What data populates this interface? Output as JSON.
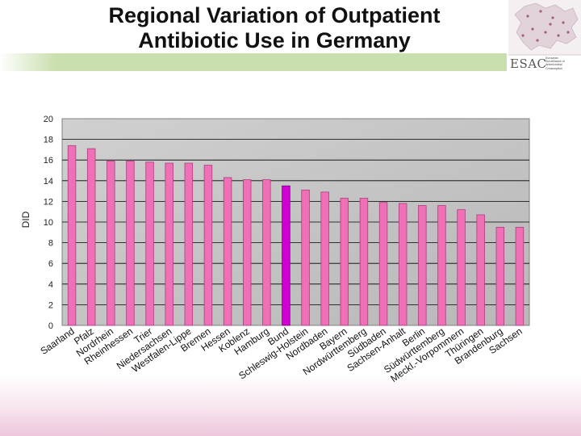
{
  "title_line1": "Regional Variation of Outpatient",
  "title_line2": "Antibiotic Use in Germany",
  "logo": {
    "text": "ESAC",
    "sub_line1": "European",
    "sub_line2": "Surveillance of",
    "sub_line3": "Antimicrobial",
    "sub_line4": "Consumption"
  },
  "colors": {
    "bar": "#f070b8",
    "bar_dark": "#a8407c",
    "highlight": "#d000d0",
    "highlight_dark": "#700070",
    "plot_bg": "#c0c0c0",
    "green": "#c9dfad"
  },
  "chart_data": {
    "type": "bar",
    "title": "",
    "xlabel": "",
    "ylabel": "DID",
    "ylim": [
      0,
      20
    ],
    "yticks": [
      "0",
      "2",
      "4",
      "6",
      "8",
      "10",
      "12",
      "14",
      "16",
      "18",
      "20"
    ],
    "categories": [
      "Saarland",
      "Pfalz",
      "Nordrhein",
      "Rheinhessen",
      "Trier",
      "Niedersachsen",
      "Westfalen-Lippe",
      "Bremen",
      "Hessen",
      "Koblenz",
      "Hamburg",
      "Bund",
      "Schleswig-Holstein",
      "Nordbaden",
      "Bayern",
      "Nordwürttemberg",
      "Südbaden",
      "Sachsen-Anhalt",
      "Berlin",
      "Südwürttemberg",
      "Meckl.-Vorpommern",
      "Thüringen",
      "Brandenburg",
      "Sachsen"
    ],
    "values": [
      17.4,
      17.1,
      15.9,
      15.9,
      15.8,
      15.7,
      15.7,
      15.5,
      14.3,
      14.1,
      14.1,
      13.5,
      13.1,
      12.9,
      12.3,
      12.3,
      11.9,
      11.8,
      11.6,
      11.6,
      11.2,
      10.7,
      9.5,
      9.5
    ],
    "highlight_category": "Bund",
    "grid": true
  }
}
